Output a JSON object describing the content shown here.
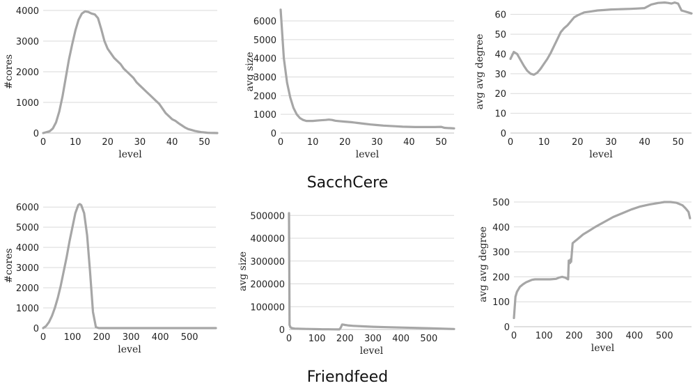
{
  "groups": [
    {
      "title": "SacchCere"
    },
    {
      "title": "Friendfeed"
    }
  ],
  "colors": {
    "series": "#a6a6a6",
    "grid": "#d9d9d9"
  },
  "chart_data": [
    {
      "type": "line",
      "group": "SacchCere",
      "xlabel": "level",
      "ylabel": "#cores",
      "xlim": [
        0,
        54
      ],
      "ylim": [
        0,
        4000
      ],
      "xticks": [
        0,
        10,
        20,
        30,
        40,
        50
      ],
      "yticks": [
        0,
        1000,
        2000,
        3000,
        4000
      ],
      "grid": true,
      "series": [
        {
          "x": [
            0,
            2,
            3,
            4,
            5,
            6,
            7,
            8,
            9,
            10,
            11,
            12,
            13,
            14,
            15,
            16,
            17,
            18,
            19,
            20,
            21,
            22,
            23,
            24,
            25,
            26,
            27,
            28,
            29,
            30,
            31,
            32,
            33,
            34,
            35,
            36,
            37,
            38,
            39,
            40,
            41,
            42,
            43,
            44,
            45,
            46,
            47,
            48,
            49,
            50,
            51,
            52,
            53,
            54
          ],
          "y": [
            0,
            60,
            150,
            350,
            700,
            1200,
            1800,
            2400,
            2900,
            3350,
            3700,
            3900,
            3970,
            3950,
            3900,
            3870,
            3750,
            3400,
            3000,
            2750,
            2600,
            2450,
            2350,
            2250,
            2100,
            2000,
            1900,
            1800,
            1650,
            1550,
            1450,
            1350,
            1250,
            1150,
            1050,
            950,
            800,
            650,
            550,
            450,
            400,
            320,
            250,
            180,
            130,
            100,
            70,
            50,
            30,
            20,
            10,
            5,
            2,
            0
          ]
        }
      ]
    },
    {
      "type": "line",
      "group": "SacchCere",
      "xlabel": "level",
      "ylabel": "avg size",
      "xlim": [
        0,
        54
      ],
      "ylim": [
        0,
        6500
      ],
      "xticks": [
        0,
        10,
        20,
        30,
        40,
        50
      ],
      "yticks": [
        0,
        1000,
        2000,
        3000,
        4000,
        5000,
        6000
      ],
      "grid": true,
      "series": [
        {
          "x": [
            0,
            1,
            2,
            3,
            4,
            5,
            6,
            7,
            8,
            9,
            10,
            12,
            14,
            15,
            16,
            17,
            18,
            20,
            22,
            24,
            26,
            28,
            30,
            32,
            34,
            36,
            38,
            40,
            42,
            44,
            46,
            48,
            50,
            51,
            52,
            53,
            54
          ],
          "y": [
            6600,
            4000,
            2700,
            1900,
            1350,
            1000,
            800,
            700,
            650,
            650,
            650,
            680,
            700,
            720,
            700,
            660,
            640,
            610,
            580,
            540,
            500,
            460,
            430,
            400,
            380,
            360,
            340,
            330,
            320,
            320,
            320,
            320,
            330,
            280,
            270,
            260,
            250
          ]
        }
      ]
    },
    {
      "type": "line",
      "group": "SacchCere",
      "xlabel": "level",
      "ylabel": "avg avg degree",
      "xlim": [
        0,
        54
      ],
      "ylim": [
        0,
        65
      ],
      "xticks": [
        0,
        10,
        20,
        30,
        40,
        50
      ],
      "yticks": [
        0,
        10,
        20,
        30,
        40,
        50,
        60
      ],
      "grid": true,
      "series": [
        {
          "x": [
            0,
            1,
            2,
            3,
            4,
            5,
            6,
            7,
            8,
            9,
            10,
            11,
            12,
            13,
            14,
            15,
            16,
            17,
            18,
            19,
            20,
            22,
            24,
            26,
            28,
            30,
            32,
            34,
            36,
            38,
            40,
            42,
            44,
            46,
            47,
            48,
            49,
            50,
            51,
            52,
            53,
            54
          ],
          "y": [
            37.5,
            41,
            40,
            37,
            34,
            31.5,
            30,
            29.5,
            30.5,
            32.5,
            35,
            37.5,
            40.5,
            44,
            47.5,
            51,
            53,
            54.5,
            56.5,
            58.5,
            59.5,
            61,
            61.5,
            62,
            62.2,
            62.5,
            62.6,
            62.7,
            62.8,
            63,
            63.2,
            65,
            65.8,
            66,
            65.8,
            65.5,
            66,
            65.5,
            62,
            61.5,
            61,
            60.5
          ]
        }
      ]
    },
    {
      "type": "line",
      "group": "Friendfeed",
      "xlabel": "level",
      "ylabel": "#cores",
      "xlim": [
        0,
        590
      ],
      "ylim": [
        0,
        6500
      ],
      "xticks": [
        0,
        100,
        200,
        300,
        400,
        500
      ],
      "yticks": [
        0,
        1000,
        2000,
        3000,
        4000,
        5000,
        6000
      ],
      "grid": true,
      "series": [
        {
          "x": [
            0,
            10,
            20,
            30,
            40,
            50,
            60,
            70,
            80,
            90,
            100,
            110,
            120,
            125,
            130,
            140,
            150,
            160,
            170,
            180,
            190,
            200,
            300,
            400,
            500,
            590
          ],
          "y": [
            0,
            100,
            300,
            600,
            1000,
            1500,
            2100,
            2800,
            3500,
            4300,
            5000,
            5700,
            6100,
            6150,
            6100,
            5700,
            4600,
            2800,
            800,
            50,
            0,
            0,
            0,
            0,
            0,
            0
          ]
        }
      ]
    },
    {
      "type": "line",
      "group": "Friendfeed",
      "xlabel": "level",
      "ylabel": "avg size",
      "xlim": [
        0,
        590
      ],
      "ylim": [
        0,
        520000
      ],
      "xticks": [
        0,
        100,
        200,
        300,
        400,
        500
      ],
      "yticks": [
        0,
        100000,
        200000,
        300000,
        400000,
        500000
      ],
      "grid": true,
      "series": [
        {
          "x": [
            0,
            2,
            5,
            10,
            20,
            40,
            60,
            80,
            100,
            120,
            140,
            160,
            180,
            185,
            190,
            195,
            200,
            210,
            230,
            260,
            300,
            350,
            400,
            450,
            500,
            550,
            590
          ],
          "y": [
            510000,
            20000,
            10000,
            6000,
            4000,
            3000,
            2500,
            2000,
            1500,
            1000,
            800,
            500,
            300,
            8000,
            22000,
            21000,
            20000,
            18000,
            16000,
            14000,
            12000,
            10000,
            8500,
            7000,
            5500,
            3500,
            2000
          ]
        }
      ]
    },
    {
      "type": "line",
      "group": "Friendfeed",
      "xlabel": "level",
      "ylabel": "avg avg degree",
      "xlim": [
        0,
        590
      ],
      "ylim": [
        0,
        510
      ],
      "xticks": [
        0,
        100,
        200,
        300,
        400,
        500
      ],
      "yticks": [
        0,
        100,
        200,
        300,
        400,
        500
      ],
      "grid": true,
      "series": [
        {
          "x": [
            0,
            5,
            10,
            20,
            30,
            40,
            50,
            60,
            70,
            80,
            100,
            120,
            140,
            150,
            160,
            170,
            180,
            182,
            184,
            186,
            188,
            190,
            195,
            200,
            210,
            220,
            230,
            250,
            270,
            300,
            330,
            360,
            390,
            420,
            450,
            480,
            500,
            520,
            540,
            560,
            570,
            580,
            585
          ],
          "y": [
            35,
            120,
            140,
            160,
            170,
            178,
            183,
            188,
            190,
            190,
            190,
            190,
            192,
            197,
            200,
            197,
            190,
            265,
            265,
            255,
            270,
            260,
            335,
            340,
            350,
            360,
            370,
            385,
            400,
            420,
            440,
            455,
            470,
            482,
            490,
            496,
            500,
            500,
            497,
            487,
            475,
            460,
            435
          ]
        }
      ]
    }
  ]
}
